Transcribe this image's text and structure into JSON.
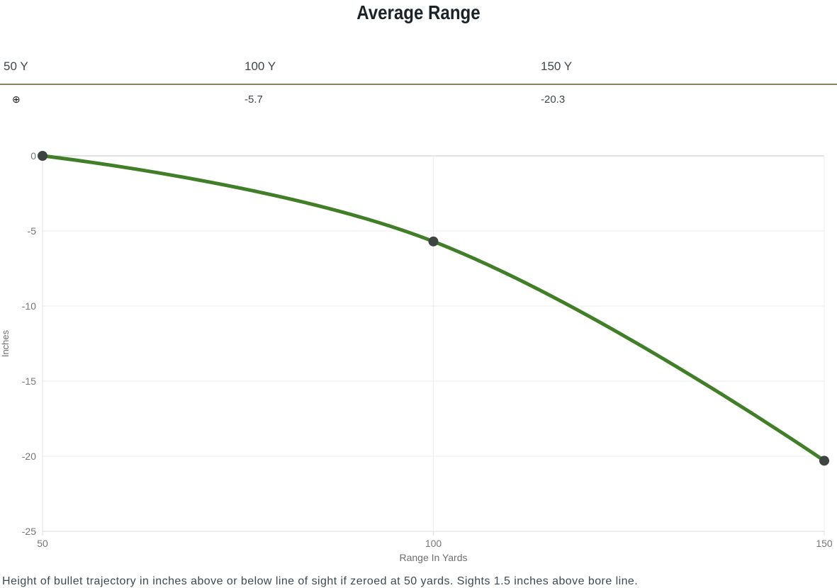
{
  "title": "Average Range",
  "table": {
    "columns": [
      {
        "label": "50 Y",
        "value": "⊕"
      },
      {
        "label": "100 Y",
        "value": "-5.7"
      },
      {
        "label": "150 Y",
        "value": "-20.3"
      }
    ]
  },
  "chart_data": {
    "type": "line",
    "x": [
      50,
      100,
      150
    ],
    "series": [
      {
        "name": "Average Range",
        "values": [
          0,
          -5.7,
          -20.3
        ]
      }
    ],
    "xlabel": "Range In Yards",
    "ylabel": "Inches",
    "xlim": [
      50,
      150
    ],
    "ylim": [
      -25,
      0
    ],
    "xticks": [
      50,
      100,
      150
    ],
    "yticks": [
      0,
      -5,
      -10,
      -15,
      -20,
      -25
    ],
    "grid": true,
    "legend_position": "none",
    "line_color": "#407f27",
    "point_color": "#3d4442",
    "zero_gridline_color": "#c8c8c8",
    "gridline_color": "#ededed",
    "axis_line_color": "#e0e0e0",
    "bottom_line_color": "#dcdcdc",
    "tick_label_color": "#777777",
    "axis_title_color": "#6f6f6f"
  },
  "footnote": "Height of bullet trajectory in inches above or below line of sight if zeroed at 50 yards. Sights 1.5 inches above bore line."
}
